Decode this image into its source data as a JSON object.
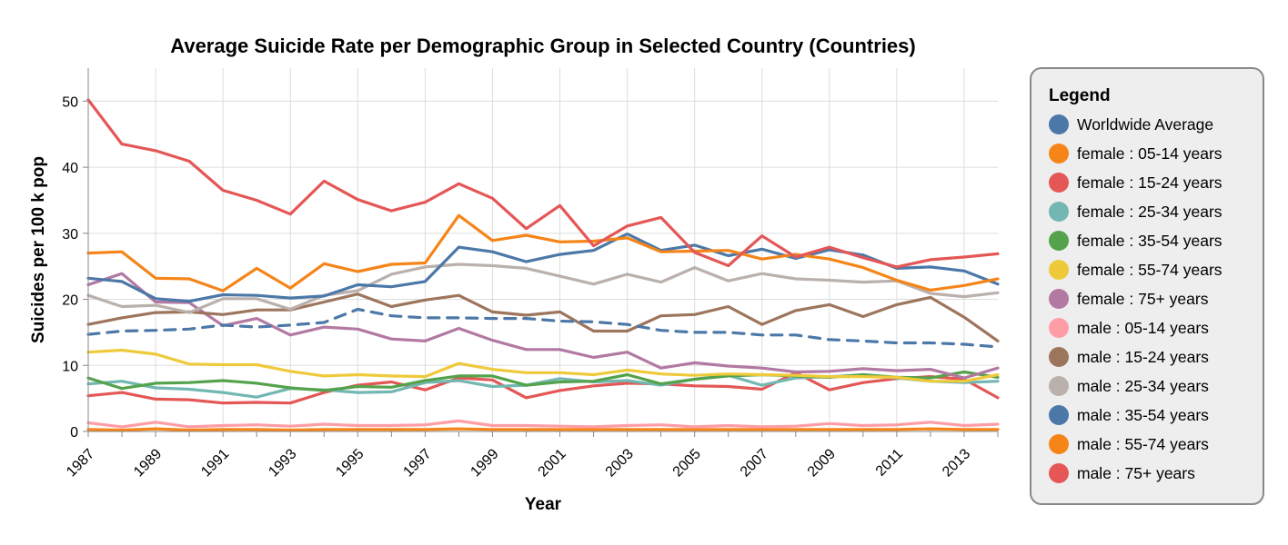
{
  "chart_data": {
    "type": "line",
    "title": "Average Suicide Rate per Demographic Group in Selected Country (Countries)",
    "xlabel": "Year",
    "ylabel": "Suicides per 100 k pop",
    "xlim": [
      1987,
      2014
    ],
    "ylim": [
      0,
      55
    ],
    "grid": true,
    "x_ticks": [
      1987,
      1989,
      1991,
      1993,
      1995,
      1997,
      1999,
      2001,
      2003,
      2005,
      2007,
      2009,
      2011,
      2013
    ],
    "y_ticks": [
      0,
      10,
      20,
      30,
      40,
      50
    ],
    "x": [
      1987,
      1988,
      1989,
      1990,
      1991,
      1992,
      1993,
      1994,
      1995,
      1996,
      1997,
      1998,
      1999,
      2000,
      2001,
      2002,
      2003,
      2004,
      2005,
      2006,
      2007,
      2008,
      2009,
      2010,
      2011,
      2012,
      2013,
      2014
    ],
    "legend": {
      "title": "Legend",
      "placement": "right"
    },
    "series": [
      {
        "name": "Worldwide Average",
        "color": "#4c78a8",
        "dashed": true,
        "values": [
          14.7,
          15.2,
          15.3,
          15.5,
          16.1,
          15.8,
          16.1,
          16.5,
          18.5,
          17.5,
          17.2,
          17.2,
          17.1,
          17.1,
          16.7,
          16.6,
          16.2,
          15.3,
          15.0,
          15.0,
          14.6,
          14.6,
          13.9,
          13.7,
          13.4,
          13.4,
          13.2,
          12.8
        ]
      },
      {
        "name": "female : 05-14 years",
        "color": "#f58518",
        "values": [
          0.3,
          0.2,
          0.4,
          0.2,
          0.3,
          0.3,
          0.2,
          0.3,
          0.3,
          0.3,
          0.3,
          0.4,
          0.3,
          0.3,
          0.3,
          0.3,
          0.3,
          0.3,
          0.3,
          0.3,
          0.3,
          0.3,
          0.3,
          0.3,
          0.3,
          0.4,
          0.3,
          0.3
        ]
      },
      {
        "name": "female : 15-24 years",
        "color": "#e45756",
        "values": [
          5.4,
          5.9,
          4.9,
          4.8,
          4.3,
          4.4,
          4.3,
          5.9,
          7.0,
          7.5,
          6.3,
          8.1,
          7.8,
          5.1,
          6.2,
          6.9,
          7.3,
          7.2,
          6.9,
          6.8,
          6.4,
          8.9,
          6.3,
          7.4,
          8.0,
          8.3,
          7.9,
          5.1
        ]
      },
      {
        "name": "female : 25-34 years",
        "color": "#72b7b2",
        "values": [
          7.2,
          7.6,
          6.6,
          6.4,
          5.9,
          5.2,
          6.5,
          6.3,
          5.9,
          6.0,
          7.4,
          7.7,
          6.8,
          7.0,
          8.0,
          7.5,
          7.7,
          7.0,
          7.9,
          8.5,
          7.0,
          8.1,
          8.3,
          8.5,
          8.1,
          7.6,
          7.4,
          7.6
        ]
      },
      {
        "name": "female : 35-54 years",
        "color": "#54a24b",
        "values": [
          8.1,
          6.5,
          7.3,
          7.4,
          7.7,
          7.3,
          6.6,
          6.2,
          6.8,
          6.7,
          7.7,
          8.4,
          8.4,
          7.0,
          7.5,
          7.6,
          8.6,
          7.2,
          7.9,
          8.4,
          8.6,
          8.4,
          8.2,
          8.6,
          8.2,
          8.1,
          9.0,
          8.2
        ]
      },
      {
        "name": "female : 55-74 years",
        "color": "#eeca3b",
        "values": [
          12.0,
          12.3,
          11.7,
          10.2,
          10.1,
          10.1,
          9.1,
          8.4,
          8.6,
          8.4,
          8.3,
          10.3,
          9.4,
          8.9,
          8.9,
          8.6,
          9.3,
          8.7,
          8.5,
          8.7,
          8.6,
          8.5,
          8.3,
          8.3,
          8.2,
          7.6,
          7.6,
          8.6
        ]
      },
      {
        "name": "female : 75+ years",
        "color": "#b279a2",
        "values": [
          22.2,
          23.9,
          19.6,
          19.5,
          16.0,
          17.1,
          14.6,
          15.8,
          15.5,
          14.0,
          13.7,
          15.6,
          13.8,
          12.4,
          12.4,
          11.2,
          12.0,
          9.6,
          10.4,
          9.9,
          9.6,
          9.0,
          9.1,
          9.5,
          9.2,
          9.4,
          8.1,
          9.6
        ]
      },
      {
        "name": "male : 05-14 years",
        "color": "#ff9da6",
        "values": [
          1.3,
          0.7,
          1.4,
          0.7,
          0.9,
          1.0,
          0.8,
          1.1,
          0.9,
          0.9,
          1.0,
          1.6,
          0.9,
          0.9,
          0.8,
          0.7,
          0.9,
          1.0,
          0.7,
          0.9,
          0.7,
          0.8,
          1.2,
          0.9,
          1.0,
          1.4,
          0.9,
          1.1
        ]
      },
      {
        "name": "male : 15-24 years",
        "color": "#9d755d",
        "values": [
          16.2,
          17.2,
          18.0,
          18.1,
          17.7,
          18.4,
          18.4,
          19.6,
          20.8,
          18.9,
          19.9,
          20.6,
          18.1,
          17.6,
          18.1,
          15.2,
          15.2,
          17.5,
          17.7,
          18.9,
          16.2,
          18.3,
          19.2,
          17.4,
          19.2,
          20.3,
          17.3,
          13.7
        ]
      },
      {
        "name": "male : 25-34 years",
        "color": "#bab0ac",
        "values": [
          20.6,
          18.9,
          19.1,
          18.0,
          20.1,
          20.1,
          18.5,
          20.6,
          21.3,
          23.8,
          24.9,
          25.3,
          25.1,
          24.7,
          23.5,
          22.3,
          23.8,
          22.6,
          24.8,
          22.8,
          23.9,
          23.1,
          22.9,
          22.6,
          22.8,
          20.9,
          20.4,
          21.0
        ]
      },
      {
        "name": "male : 35-54 years",
        "color": "#4c78a8",
        "values": [
          23.2,
          22.7,
          20.1,
          19.7,
          20.7,
          20.6,
          20.2,
          20.5,
          22.2,
          21.9,
          22.7,
          27.9,
          27.2,
          25.7,
          26.8,
          27.4,
          29.9,
          27.4,
          28.2,
          26.6,
          27.6,
          26.2,
          27.5,
          26.7,
          24.7,
          24.9,
          24.3,
          22.3
        ]
      },
      {
        "name": "male : 55-74 years",
        "color": "#f58518",
        "values": [
          27.0,
          27.2,
          23.2,
          23.1,
          21.3,
          24.7,
          21.7,
          25.4,
          24.2,
          25.3,
          25.5,
          32.7,
          28.9,
          29.7,
          28.7,
          28.8,
          29.3,
          27.2,
          27.3,
          27.4,
          26.1,
          26.8,
          26.1,
          24.8,
          22.9,
          21.4,
          22.1,
          23.1
        ]
      },
      {
        "name": "male : 75+ years",
        "color": "#e45756",
        "values": [
          50.2,
          43.5,
          42.5,
          40.9,
          36.5,
          35.0,
          32.9,
          37.9,
          35.1,
          33.4,
          34.7,
          37.5,
          35.3,
          30.7,
          34.2,
          28.1,
          31.1,
          32.4,
          27.1,
          25.1,
          29.6,
          26.4,
          27.9,
          26.3,
          24.9,
          26.0,
          26.4,
          26.9
        ]
      }
    ]
  },
  "legend_box": {
    "stroke": "#888888",
    "fill": "#eeeeee"
  }
}
